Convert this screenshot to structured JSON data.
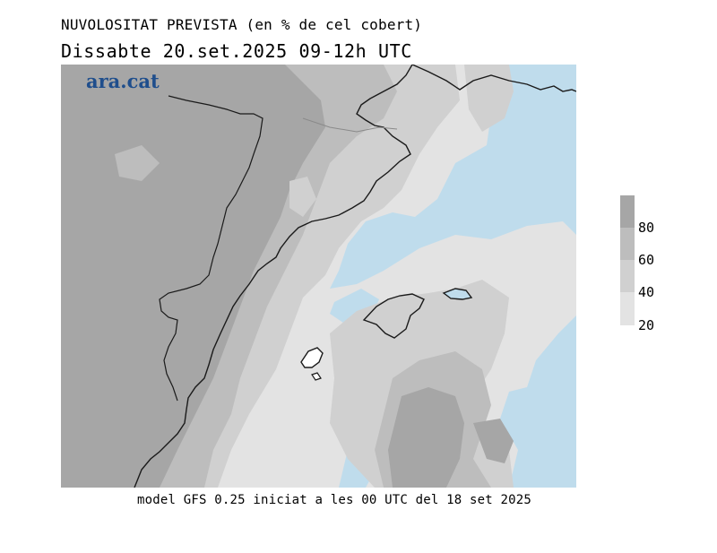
{
  "header": {
    "title": "NUVOLOSITAT PREVISTA (en % de cel cobert)",
    "subtitle": "Dissabte   20.set.2025 09-12h UTC"
  },
  "logo": {
    "text": "ara.cat"
  },
  "footer": {
    "text": "model GFS 0.25 iniciat a les 00 UTC del 18 set 2025"
  },
  "legend": {
    "ticks": [
      "80",
      "60",
      "40",
      "20"
    ],
    "colors": [
      "#a6a6a6",
      "#bdbdbd",
      "#d0d0d0",
      "#e3e3e3"
    ]
  },
  "colors": {
    "sea": "#bfdcec",
    "cloud_80_100": "#a6a6a6",
    "cloud_60_80": "#bdbdbd",
    "cloud_40_60": "#d0d0d0",
    "cloud_20_40": "#e3e3e3",
    "coastline": "#1a1a1a",
    "logo": "#1f4e8c"
  }
}
